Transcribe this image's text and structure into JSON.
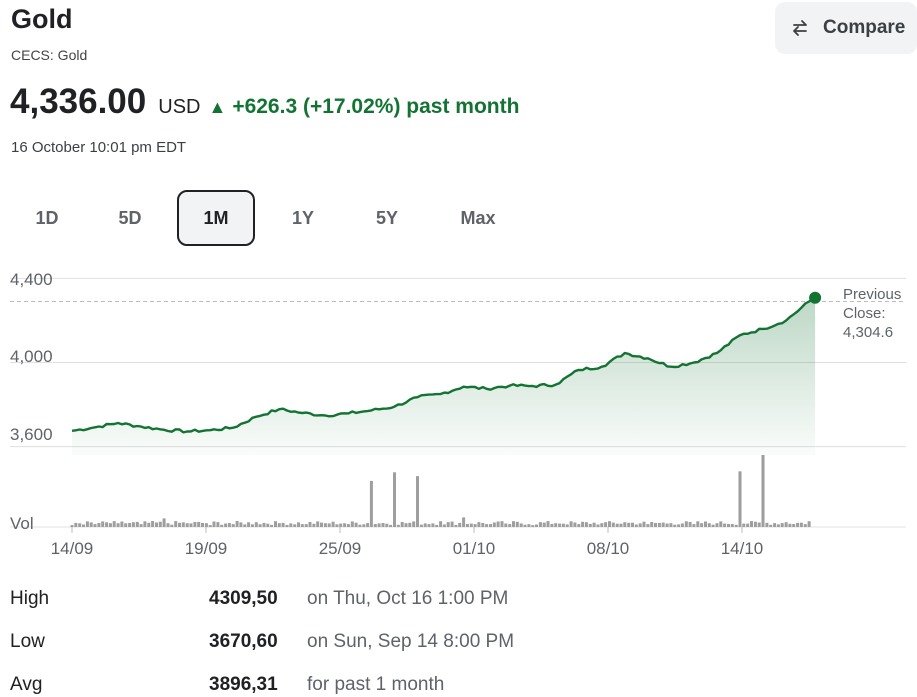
{
  "header": {
    "title": "Gold",
    "subtitle": "CECS: Gold",
    "compare_label": "Compare"
  },
  "quote": {
    "price": "4,336.00",
    "currency": "USD",
    "change_arrow": "▲",
    "change_text": "+626.3 (+17.02%) past month",
    "timestamp": "16 October 10:01 pm EDT",
    "up_color": "#137333"
  },
  "ranges": {
    "tabs": [
      "1D",
      "5D",
      "1M",
      "1Y",
      "5Y",
      "Max"
    ],
    "active": "1M"
  },
  "previous_close": {
    "label_line1": "Previous",
    "label_line2": "Close:",
    "value": "4,304.6",
    "numeric": 4304.6
  },
  "chart_data": {
    "type": "area",
    "y_ticks": [
      "4,400",
      "4,000",
      "3,600"
    ],
    "ylim": [
      3560,
      4440
    ],
    "volume_label": "Vol",
    "x_tick_labels": [
      "14/09",
      "19/09",
      "25/09",
      "01/10",
      "08/10",
      "14/10"
    ],
    "x_range": [
      "2025-09-14",
      "2025-10-17"
    ],
    "line_color": "#137333",
    "series": [
      {
        "x": [
          "2025-09-14",
          "2025-09-15",
          "2025-09-16",
          "2025-09-17",
          "2025-09-18",
          "2025-09-19",
          "2025-09-20",
          "2025-09-21",
          "2025-09-22",
          "2025-09-23",
          "2025-09-24",
          "2025-09-25",
          "2025-09-26",
          "2025-09-27",
          "2025-09-28",
          "2025-09-29",
          "2025-09-30",
          "2025-10-01",
          "2025-10-02",
          "2025-10-03",
          "2025-10-04",
          "2025-10-05",
          "2025-10-06",
          "2025-10-07",
          "2025-10-08",
          "2025-10-09",
          "2025-10-10",
          "2025-10-11",
          "2025-10-12",
          "2025-10-13",
          "2025-10-14",
          "2025-10-15",
          "2025-10-16"
        ],
        "values": [
          3675,
          3692,
          3712,
          3695,
          3680,
          3672,
          3678,
          3690,
          3742,
          3778,
          3760,
          3748,
          3758,
          3772,
          3790,
          3835,
          3850,
          3885,
          3875,
          3890,
          3888,
          3895,
          3965,
          3980,
          4045,
          4020,
          3980,
          4000,
          4045,
          4130,
          4160,
          4200,
          4290
        ]
      }
    ],
    "volume": [
      {
        "x": "2025-09-14",
        "v": 2
      },
      {
        "x": "2025-09-15",
        "v": 3
      },
      {
        "x": "2025-09-16",
        "v": 4
      },
      {
        "x": "2025-09-17",
        "v": 3
      },
      {
        "x": "2025-09-18",
        "v": 9
      },
      {
        "x": "2025-09-19",
        "v": 4
      },
      {
        "x": "2025-09-20",
        "v": 2
      },
      {
        "x": "2025-09-21",
        "v": 3
      },
      {
        "x": "2025-09-22",
        "v": 5
      },
      {
        "x": "2025-09-23",
        "v": 4
      },
      {
        "x": "2025-09-24",
        "v": 3
      },
      {
        "x": "2025-09-25",
        "v": 4
      },
      {
        "x": "2025-09-26",
        "v": 3
      },
      {
        "x": "2025-09-27",
        "v": 48
      },
      {
        "x": "2025-09-28",
        "v": 57
      },
      {
        "x": "2025-09-29",
        "v": 53
      },
      {
        "x": "2025-09-30",
        "v": 6
      },
      {
        "x": "2025-10-01",
        "v": 10
      },
      {
        "x": "2025-10-02",
        "v": 3
      },
      {
        "x": "2025-10-03",
        "v": 3
      },
      {
        "x": "2025-10-04",
        "v": 2
      },
      {
        "x": "2025-10-05",
        "v": 4
      },
      {
        "x": "2025-10-06",
        "v": 3
      },
      {
        "x": "2025-10-07",
        "v": 4
      },
      {
        "x": "2025-10-08",
        "v": 5
      },
      {
        "x": "2025-10-09",
        "v": 3
      },
      {
        "x": "2025-10-10",
        "v": 4
      },
      {
        "x": "2025-10-11",
        "v": 3
      },
      {
        "x": "2025-10-12",
        "v": 4
      },
      {
        "x": "2025-10-13",
        "v": 58
      },
      {
        "x": "2025-10-14",
        "v": 75
      },
      {
        "x": "2025-10-15",
        "v": 5
      },
      {
        "x": "2025-10-16",
        "v": 6
      }
    ],
    "previous_close": 4304.6
  },
  "stats": [
    {
      "label": "High",
      "value": "4309,50",
      "note": "on Thu, Oct 16 1:00 PM"
    },
    {
      "label": "Low",
      "value": "3670,60",
      "note": "on Sun, Sep 14 8:00 PM"
    },
    {
      "label": "Avg",
      "value": "3896,31",
      "note": "for past 1 month"
    }
  ]
}
